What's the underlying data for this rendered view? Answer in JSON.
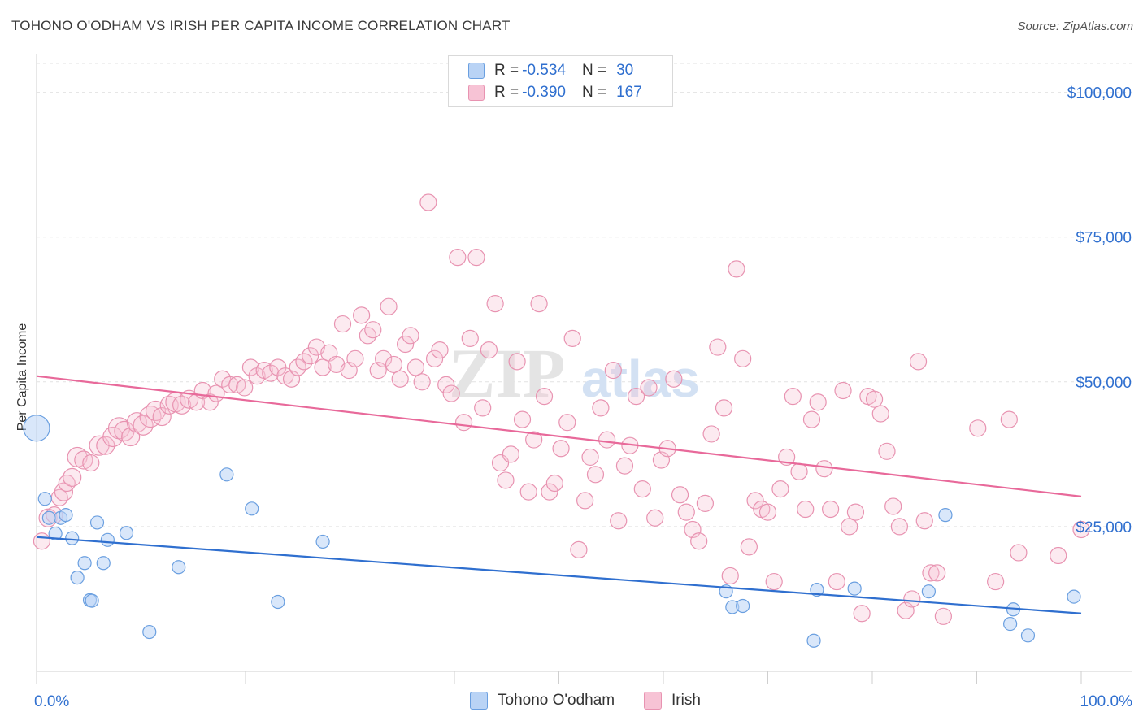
{
  "title": "TOHONO O'ODHAM VS IRISH PER CAPITA INCOME CORRELATION CHART",
  "source": "Source: ZipAtlas.com",
  "watermark": "ZIPatlas",
  "colors": {
    "blue": "#2f6fcf",
    "blue_fill": "#b9d3f5",
    "pink": "#e8699a",
    "pink_fill": "#f7c3d5",
    "axis_label": "#2f6fcf"
  },
  "legend": {
    "rows": [
      {
        "r_label": "R =",
        "r_value": "-0.534",
        "n_label": "N =",
        "n_value": "30"
      },
      {
        "r_label": "R =",
        "r_value": "-0.390",
        "n_label": "N =",
        "n_value": "167"
      }
    ]
  },
  "bottom_legend": [
    "Tohono O'odham",
    "Irish"
  ],
  "chart_data": {
    "type": "scatter",
    "title": "TOHONO O'ODHAM VS IRISH PER CAPITA INCOME CORRELATION CHART",
    "xlabel": "",
    "ylabel": "Per Capita Income",
    "xlim": [
      0,
      100
    ],
    "ylim": [
      0,
      105000
    ],
    "x_tick_labels": [
      "0.0%",
      "100.0%"
    ],
    "y_ticks": [
      25000,
      50000,
      75000,
      100000
    ],
    "y_tick_labels": [
      "$25,000",
      "$50,000",
      "$75,000",
      "$100,000"
    ],
    "series": [
      {
        "name": "Tohono O'odham",
        "color": "#2f6fcf",
        "R": -0.534,
        "N": 30,
        "trend": {
          "x": [
            0,
            100
          ],
          "y": [
            23200,
            10000
          ]
        },
        "points": [
          [
            0.0,
            42000,
            16
          ],
          [
            0.8,
            29800,
            8
          ],
          [
            1.2,
            26500,
            8
          ],
          [
            1.8,
            23800,
            8
          ],
          [
            2.3,
            26500,
            8
          ],
          [
            2.8,
            27000,
            8
          ],
          [
            3.4,
            23000,
            8
          ],
          [
            3.9,
            16200,
            8
          ],
          [
            4.6,
            18700,
            8
          ],
          [
            5.1,
            12300,
            8
          ],
          [
            5.3,
            12200,
            8
          ],
          [
            5.8,
            25700,
            8
          ],
          [
            6.4,
            18700,
            8
          ],
          [
            6.8,
            22700,
            8
          ],
          [
            8.6,
            23900,
            8
          ],
          [
            10.8,
            6800,
            8
          ],
          [
            13.6,
            18000,
            8
          ],
          [
            18.2,
            34000,
            8
          ],
          [
            20.6,
            28100,
            8
          ],
          [
            23.1,
            12000,
            8
          ],
          [
            27.4,
            22400,
            8
          ],
          [
            66.6,
            11100,
            8
          ],
          [
            66.0,
            13800,
            8
          ],
          [
            67.6,
            11300,
            8
          ],
          [
            74.4,
            5300,
            8
          ],
          [
            74.7,
            14100,
            8
          ],
          [
            78.3,
            14300,
            8
          ],
          [
            85.4,
            13800,
            8
          ],
          [
            87.0,
            27000,
            8
          ],
          [
            93.5,
            10700,
            8
          ],
          [
            93.2,
            8200,
            8
          ],
          [
            94.9,
            6200,
            8
          ],
          [
            99.3,
            12900,
            8
          ]
        ]
      },
      {
        "name": "Irish",
        "color": "#e8699a",
        "R": -0.39,
        "N": 167,
        "trend": {
          "x": [
            0,
            100
          ],
          "y": [
            51000,
            30200
          ]
        },
        "points": [
          [
            0.5,
            22500,
            10
          ],
          [
            1.1,
            26500,
            11
          ],
          [
            1.7,
            27000,
            10
          ],
          [
            2.2,
            30000,
            10
          ],
          [
            2.6,
            31000,
            11
          ],
          [
            2.9,
            32500,
            10
          ],
          [
            3.4,
            33500,
            11
          ],
          [
            3.9,
            37000,
            12
          ],
          [
            4.5,
            36500,
            11
          ],
          [
            5.2,
            36000,
            10
          ],
          [
            6.0,
            39000,
            12
          ],
          [
            6.6,
            39000,
            11
          ],
          [
            7.3,
            40500,
            12
          ],
          [
            7.9,
            42000,
            13
          ],
          [
            8.4,
            41500,
            12
          ],
          [
            9.0,
            40500,
            11
          ],
          [
            9.6,
            43000,
            12
          ],
          [
            10.2,
            42500,
            12
          ],
          [
            10.9,
            44000,
            13
          ],
          [
            11.4,
            45000,
            12
          ],
          [
            12.0,
            44000,
            11
          ],
          [
            12.7,
            46000,
            11
          ],
          [
            13.3,
            46500,
            12
          ],
          [
            13.9,
            46000,
            11
          ],
          [
            14.6,
            47000,
            11
          ],
          [
            15.3,
            46500,
            10
          ],
          [
            15.9,
            48500,
            10
          ],
          [
            16.6,
            46500,
            10
          ],
          [
            17.2,
            48000,
            10
          ],
          [
            17.8,
            50500,
            10
          ],
          [
            18.5,
            49500,
            10
          ],
          [
            19.2,
            49500,
            10
          ],
          [
            19.9,
            49000,
            10
          ],
          [
            20.5,
            52500,
            10
          ],
          [
            21.1,
            51000,
            10
          ],
          [
            21.8,
            52000,
            10
          ],
          [
            22.4,
            51500,
            10
          ],
          [
            23.1,
            52500,
            10
          ],
          [
            23.8,
            51000,
            10
          ],
          [
            24.4,
            50500,
            10
          ],
          [
            25.0,
            52500,
            10
          ],
          [
            25.6,
            53500,
            10
          ],
          [
            26.2,
            54500,
            10
          ],
          [
            26.8,
            56000,
            10
          ],
          [
            27.4,
            52500,
            10
          ],
          [
            28.0,
            55000,
            10
          ],
          [
            28.7,
            53000,
            10
          ],
          [
            29.3,
            60000,
            10
          ],
          [
            29.9,
            52000,
            10
          ],
          [
            30.5,
            54000,
            10
          ],
          [
            31.1,
            61500,
            10
          ],
          [
            31.7,
            58000,
            10
          ],
          [
            32.2,
            59000,
            10
          ],
          [
            32.7,
            52000,
            10
          ],
          [
            33.2,
            54000,
            10
          ],
          [
            33.7,
            63000,
            10
          ],
          [
            34.2,
            53000,
            10
          ],
          [
            34.8,
            50500,
            10
          ],
          [
            35.3,
            56500,
            10
          ],
          [
            35.8,
            58000,
            10
          ],
          [
            36.3,
            52500,
            10
          ],
          [
            36.9,
            50000,
            10
          ],
          [
            37.5,
            81000,
            10
          ],
          [
            38.1,
            54000,
            10
          ],
          [
            38.6,
            55500,
            10
          ],
          [
            39.2,
            49500,
            10
          ],
          [
            39.7,
            48000,
            10
          ],
          [
            40.3,
            71500,
            10
          ],
          [
            40.9,
            43000,
            10
          ],
          [
            41.5,
            57500,
            10
          ],
          [
            42.1,
            71500,
            10
          ],
          [
            42.7,
            45500,
            10
          ],
          [
            43.3,
            55500,
            10
          ],
          [
            43.9,
            63500,
            10
          ],
          [
            44.4,
            36000,
            10
          ],
          [
            44.9,
            33000,
            10
          ],
          [
            45.4,
            37500,
            10
          ],
          [
            46.0,
            53500,
            10
          ],
          [
            46.5,
            43500,
            10
          ],
          [
            47.1,
            31000,
            10
          ],
          [
            47.6,
            40000,
            10
          ],
          [
            48.1,
            63500,
            10
          ],
          [
            48.6,
            47500,
            10
          ],
          [
            49.1,
            31000,
            10
          ],
          [
            49.6,
            32500,
            10
          ],
          [
            50.2,
            38500,
            10
          ],
          [
            50.8,
            43000,
            10
          ],
          [
            51.3,
            57500,
            10
          ],
          [
            51.9,
            21000,
            10
          ],
          [
            52.5,
            29500,
            10
          ],
          [
            53.0,
            37000,
            10
          ],
          [
            53.5,
            34000,
            10
          ],
          [
            54.0,
            45500,
            10
          ],
          [
            54.6,
            40000,
            10
          ],
          [
            55.2,
            52000,
            10
          ],
          [
            55.7,
            26000,
            10
          ],
          [
            56.3,
            35500,
            10
          ],
          [
            56.8,
            39000,
            10
          ],
          [
            57.4,
            47500,
            10
          ],
          [
            58.0,
            31500,
            10
          ],
          [
            58.6,
            49000,
            10
          ],
          [
            59.2,
            26500,
            10
          ],
          [
            59.8,
            36500,
            10
          ],
          [
            60.4,
            38500,
            10
          ],
          [
            61.0,
            50500,
            10
          ],
          [
            61.6,
            30500,
            10
          ],
          [
            62.2,
            27500,
            10
          ],
          [
            62.8,
            24500,
            10
          ],
          [
            63.4,
            22500,
            10
          ],
          [
            64.0,
            29000,
            10
          ],
          [
            64.6,
            41000,
            10
          ],
          [
            65.2,
            56000,
            10
          ],
          [
            65.8,
            45500,
            10
          ],
          [
            66.4,
            16500,
            10
          ],
          [
            67.0,
            69500,
            10
          ],
          [
            67.6,
            54000,
            10
          ],
          [
            68.2,
            21500,
            10
          ],
          [
            68.8,
            29500,
            10
          ],
          [
            69.4,
            28000,
            10
          ],
          [
            70.0,
            27500,
            10
          ],
          [
            70.6,
            15500,
            10
          ],
          [
            71.2,
            31500,
            10
          ],
          [
            71.8,
            37000,
            10
          ],
          [
            72.4,
            47500,
            10
          ],
          [
            73.0,
            34500,
            10
          ],
          [
            73.6,
            28000,
            10
          ],
          [
            74.2,
            43500,
            10
          ],
          [
            74.8,
            46500,
            10
          ],
          [
            75.4,
            35000,
            10
          ],
          [
            76.0,
            28000,
            10
          ],
          [
            76.6,
            15500,
            10
          ],
          [
            77.2,
            48500,
            10
          ],
          [
            77.8,
            25000,
            10
          ],
          [
            78.4,
            27500,
            10
          ],
          [
            79.0,
            10000,
            10
          ],
          [
            79.6,
            47500,
            10
          ],
          [
            80.2,
            47000,
            10
          ],
          [
            80.8,
            44500,
            10
          ],
          [
            81.4,
            38000,
            10
          ],
          [
            82.0,
            28500,
            10
          ],
          [
            82.6,
            25000,
            10
          ],
          [
            83.2,
            10500,
            10
          ],
          [
            83.8,
            12500,
            10
          ],
          [
            84.4,
            53500,
            10
          ],
          [
            85.0,
            26000,
            10
          ],
          [
            85.6,
            17000,
            10
          ],
          [
            86.2,
            17000,
            10
          ],
          [
            86.8,
            9500,
            10
          ],
          [
            90.1,
            42000,
            10
          ],
          [
            91.8,
            15500,
            10
          ],
          [
            93.1,
            43500,
            10
          ],
          [
            94.0,
            20500,
            10
          ],
          [
            97.8,
            20000,
            10
          ],
          [
            100.0,
            24500,
            10
          ]
        ]
      }
    ]
  }
}
